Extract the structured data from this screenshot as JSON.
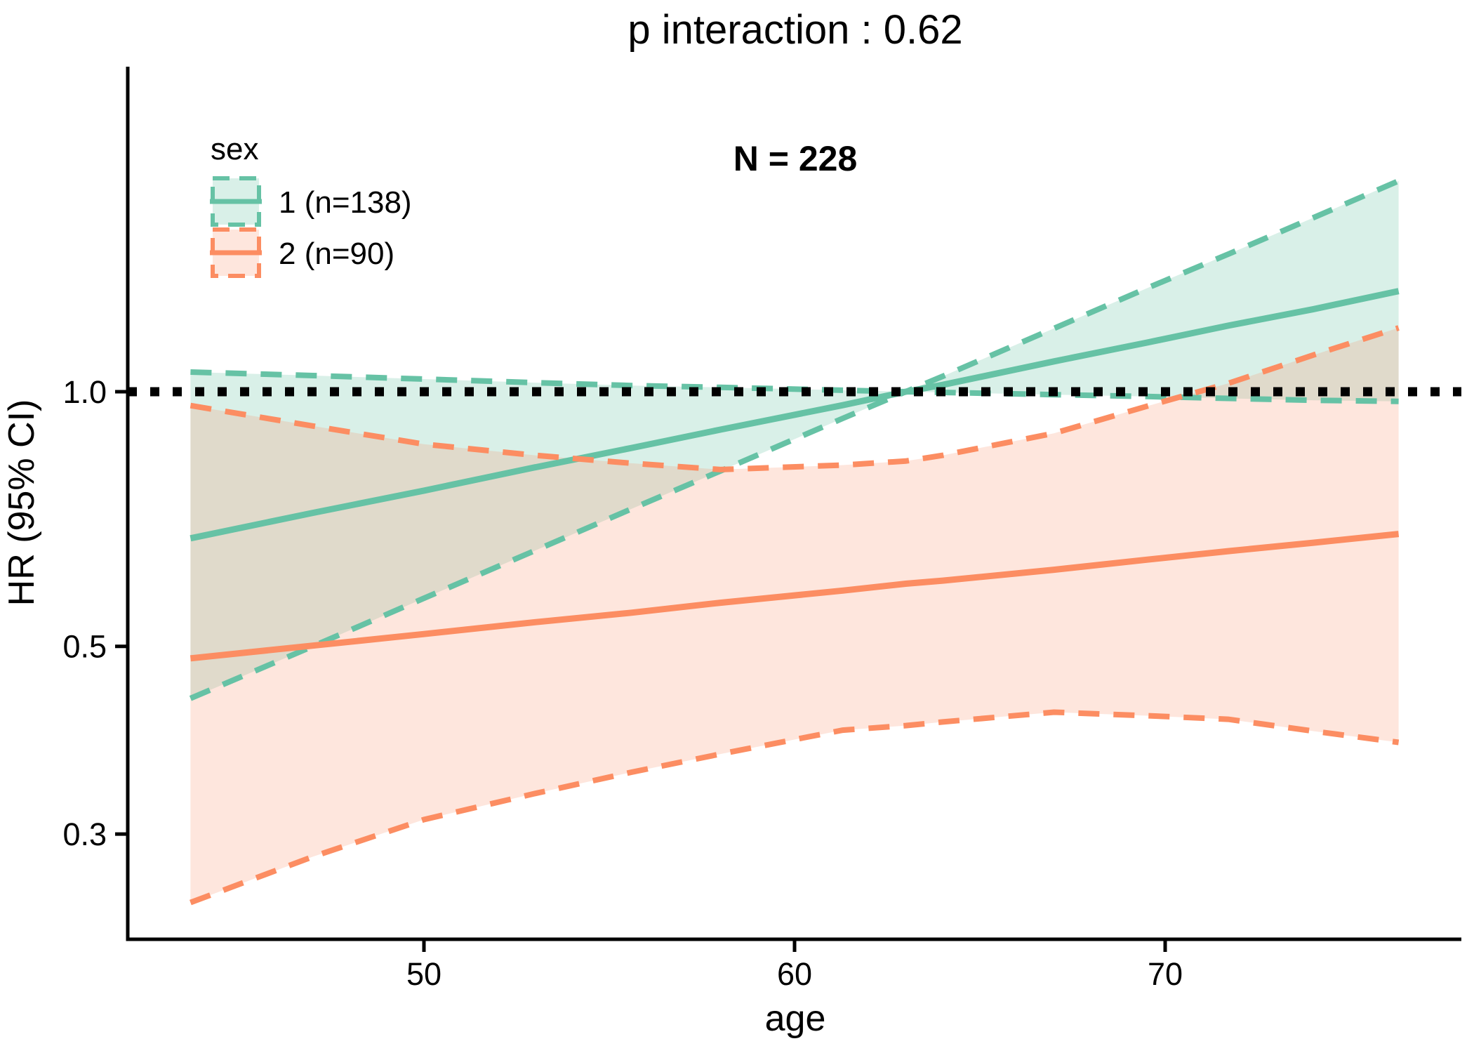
{
  "title": "p interaction : 0.62",
  "annotation": "N = 228",
  "axes": {
    "x_label": "age",
    "y_label": "HR (95% CI)",
    "x_ticks": [
      {
        "value": 50,
        "label": "50"
      },
      {
        "value": 60,
        "label": "60"
      },
      {
        "value": 70,
        "label": "70"
      }
    ],
    "y_ticks": [
      {
        "value": 1.0,
        "label": "1.0"
      },
      {
        "value": 0.5,
        "label": "0.5"
      },
      {
        "value": 0.3,
        "label": "0.3"
      }
    ]
  },
  "legend": {
    "title": "sex",
    "entries": [
      {
        "label": "1 (n=138)",
        "color_key": "group1"
      },
      {
        "label": "2 (n=90)",
        "color_key": "group2"
      }
    ]
  },
  "colors": {
    "group1": "#66C2A5",
    "group2": "#FC8D62",
    "group1_fill": "rgba(102,194,165,0.25)",
    "group2_fill": "rgba(252,141,98,0.22)",
    "reference": "#000000"
  },
  "chart_data": {
    "type": "line",
    "title": "p interaction : 0.62",
    "annotation": "N = 228",
    "xlabel": "age",
    "ylabel": "HR (95% CI)",
    "y_scale": "log",
    "x_range": [
      43.7,
      76.3
    ],
    "y_axis_breaks": [
      0.3,
      0.5,
      1.0
    ],
    "reference_line": 1.0,
    "grid": "off",
    "legend_position": "top-left-inside",
    "x": [
      43.7,
      47,
      50,
      53,
      55.6,
      58,
      61.3,
      63,
      64,
      67,
      69.5,
      71.7,
      74,
      76.3
    ],
    "groups": [
      {
        "name": "1 (n=138)",
        "color_key": "group1",
        "fit": [
          0.671,
          0.719,
          0.764,
          0.814,
          0.858,
          0.902,
          0.964,
          1.0,
          1.019,
          1.086,
          1.143,
          1.197,
          1.252,
          1.315
        ],
        "ci_upper": [
          1.055,
          1.045,
          1.035,
          1.025,
          1.017,
          1.012,
          1.004,
          1.0,
          1.043,
          1.188,
          1.325,
          1.454,
          1.606,
          1.775
        ],
        "ci_lower": [
          0.434,
          0.5,
          0.57,
          0.649,
          0.727,
          0.806,
          0.93,
          1.0,
          0.998,
          0.992,
          0.987,
          0.982,
          0.977,
          0.974
        ]
      },
      {
        "name": "2 (n=90)",
        "color_key": "group2",
        "fit": [
          0.484,
          0.501,
          0.517,
          0.534,
          0.548,
          0.563,
          0.582,
          0.593,
          0.598,
          0.616,
          0.633,
          0.648,
          0.663,
          0.679
        ],
        "ci_upper": [
          0.963,
          0.911,
          0.867,
          0.841,
          0.823,
          0.809,
          0.819,
          0.828,
          0.841,
          0.893,
          0.961,
          1.023,
          1.105,
          1.19
        ],
        "ci_lower": [
          0.249,
          0.282,
          0.312,
          0.335,
          0.355,
          0.373,
          0.398,
          0.403,
          0.407,
          0.418,
          0.414,
          0.41,
          0.397,
          0.385
        ]
      }
    ]
  }
}
